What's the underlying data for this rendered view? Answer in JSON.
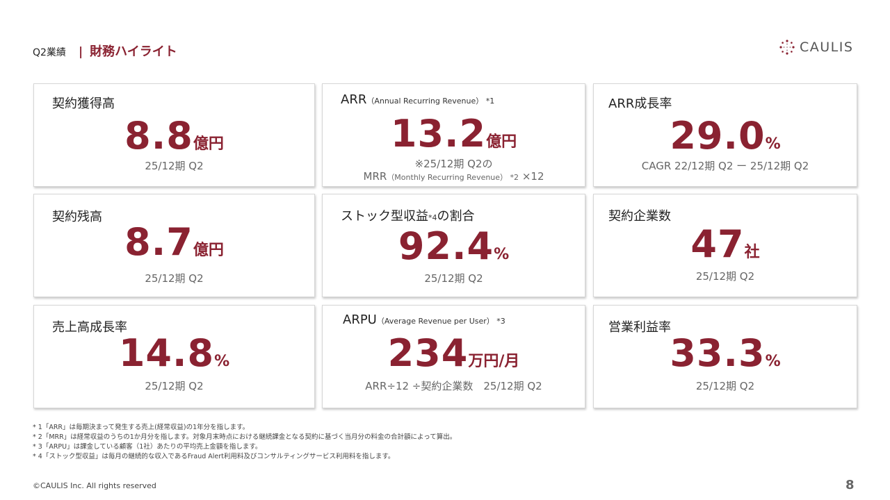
{
  "header": {
    "section_label": "Q2業績",
    "divider": "|",
    "title": "財務ハイライト"
  },
  "logo": {
    "text": "CAULIS",
    "mark_icon": "caulis-logo-icon",
    "accent_color": "#8a2231"
  },
  "accent_color": "#8a2231",
  "cards": {
    "contract_acquisition": {
      "title": "契約獲得高",
      "value": "8.8",
      "unit": "億円",
      "sub": "25/12期 Q2"
    },
    "arr": {
      "title": "ARR",
      "title_note": "（Annual Recurring Revenue） *1",
      "value": "13.2",
      "unit": "億円",
      "sub_line1": "※25/12期 Q2の",
      "sub_line2_a": "MRR",
      "sub_line2_b": "（Monthly Recurring Revenue） *2",
      "sub_line2_c": "×12"
    },
    "arr_growth": {
      "title": "ARR成長率",
      "value": "29.0",
      "unit": "%",
      "sub": "CAGR 22/12期 Q2 ー 25/12期 Q2"
    },
    "contract_balance": {
      "title": "契約残高",
      "value": "8.7",
      "unit": "億円",
      "sub": "25/12期 Q2"
    },
    "stock_revenue_ratio": {
      "title_a": "ストック型収益",
      "title_note": "*4",
      "title_b": "の割合",
      "value": "92.4",
      "unit": "%",
      "sub": "25/12期 Q2"
    },
    "contract_companies": {
      "title": "契約企業数",
      "value": "47",
      "unit": "社",
      "sub": "25/12期 Q2"
    },
    "sales_growth": {
      "title": "売上高成長率",
      "value": "14.8",
      "unit": "%",
      "sub": "25/12期 Q2"
    },
    "arpu": {
      "title": "ARPU",
      "title_note": "（Average  Revenue per User）  *3",
      "value": "234",
      "unit": "万円/月",
      "sub": "ARR÷12 ÷契約企業数　25/12期 Q2"
    },
    "operating_margin": {
      "title": "営業利益率",
      "value": "33.3",
      "unit": "%",
      "sub": "25/12期 Q2"
    }
  },
  "footnotes": [
    "* 1「ARR」は毎期決まって発生する売上(経常収益)の1年分を指します。",
    "* 2「MRR」は経常収益のうちの1か月分を指します。対象月末時点における継続課金となる契約に基づく当月分の料金の合計額によって算出。",
    "* 3「ARPU」は課金している顧客（1社）あたりの平均売上金額を指します。",
    "* 4「ストック型収益」は毎月の継続的な収入であるFraud Alert利用料及びコンサルティングサービス利用料を指します。"
  ],
  "footer": {
    "copyright": "©CAULIS Inc. All rights reserved",
    "page_number": "8"
  }
}
